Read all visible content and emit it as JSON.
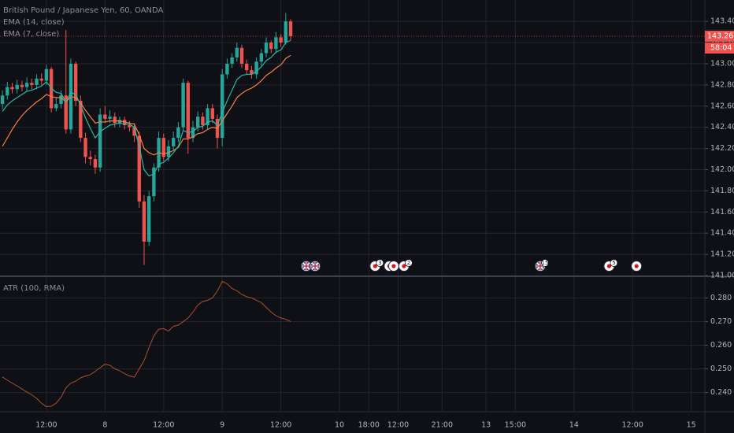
{
  "chart_data": [
    {
      "type": "candlestick",
      "title": "British Pound / Japanese Yen, 60, OANDA",
      "up_color": "#26a69a",
      "down_color": "#ef5350",
      "open": [
        142.62,
        142.7,
        142.78,
        142.76,
        142.8,
        142.78,
        142.82,
        142.8,
        142.86,
        142.84,
        142.95,
        142.58,
        142.62,
        142.7,
        142.38,
        143.0,
        142.65,
        142.3,
        142.12,
        142.1,
        142.02,
        142.52,
        142.48,
        142.5,
        142.44,
        142.47,
        142.42,
        142.4,
        142.32,
        141.7,
        141.32,
        141.75,
        142.02,
        142.3,
        142.12,
        142.22,
        142.3,
        142.4,
        142.82,
        142.3,
        142.4,
        142.5,
        142.42,
        142.58,
        142.48,
        142.3,
        142.9,
        143.0,
        143.06,
        143.15,
        143.0,
        142.94,
        142.9,
        143.02,
        143.1,
        143.2,
        143.14,
        143.25,
        143.2,
        143.4
      ],
      "high": [
        142.75,
        142.83,
        142.82,
        142.85,
        142.84,
        142.87,
        142.86,
        142.9,
        142.91,
        142.99,
        142.97,
        142.68,
        142.75,
        143.32,
        143.05,
        143.02,
        142.7,
        142.35,
        142.18,
        142.14,
        142.58,
        142.6,
        142.56,
        142.54,
        142.5,
        142.5,
        142.46,
        142.44,
        142.36,
        141.76,
        141.8,
        142.06,
        142.36,
        142.34,
        142.28,
        142.36,
        142.45,
        142.86,
        142.84,
        142.46,
        142.55,
        142.54,
        142.62,
        142.62,
        142.52,
        142.95,
        143.05,
        143.1,
        143.2,
        143.18,
        143.04,
        142.98,
        143.06,
        143.14,
        143.25,
        143.22,
        143.3,
        143.28,
        143.48,
        143.42
      ],
      "low": [
        142.57,
        142.66,
        142.72,
        142.72,
        142.74,
        142.74,
        142.76,
        142.76,
        142.8,
        142.8,
        142.54,
        142.55,
        142.58,
        142.34,
        142.34,
        142.6,
        142.26,
        142.06,
        142.04,
        141.96,
        141.98,
        142.44,
        142.44,
        142.4,
        142.4,
        142.38,
        142.36,
        142.26,
        141.64,
        141.1,
        141.28,
        141.7,
        141.98,
        142.08,
        142.08,
        142.18,
        142.26,
        142.36,
        142.15,
        142.26,
        142.36,
        142.38,
        142.38,
        142.44,
        142.2,
        142.22,
        142.86,
        142.96,
        143.02,
        142.96,
        142.9,
        142.86,
        142.86,
        142.98,
        143.06,
        143.1,
        143.1,
        143.16,
        143.18,
        143.22
      ],
      "close": [
        142.7,
        142.78,
        142.76,
        142.8,
        142.78,
        142.82,
        142.8,
        142.86,
        142.84,
        142.95,
        142.58,
        142.62,
        142.7,
        142.38,
        143.0,
        142.65,
        142.3,
        142.12,
        142.1,
        142.02,
        142.52,
        142.48,
        142.5,
        142.44,
        142.47,
        142.42,
        142.4,
        142.32,
        141.7,
        141.32,
        141.75,
        142.02,
        142.3,
        142.12,
        142.22,
        142.3,
        142.4,
        142.82,
        142.3,
        142.4,
        142.5,
        142.42,
        142.58,
        142.48,
        142.3,
        142.9,
        143.0,
        143.06,
        143.15,
        143.0,
        142.94,
        142.9,
        143.02,
        143.1,
        143.2,
        143.14,
        143.25,
        143.2,
        143.4,
        143.26
      ],
      "series": [
        {
          "name": "EMA (14, close)",
          "color": "#f57f47",
          "values": [
            142.22,
            142.3,
            142.38,
            142.45,
            142.51,
            142.56,
            142.6,
            142.64,
            142.67,
            142.71,
            142.69,
            142.68,
            142.68,
            142.64,
            142.69,
            142.68,
            142.63,
            142.56,
            142.5,
            142.44,
            142.45,
            142.45,
            142.46,
            142.46,
            142.46,
            142.45,
            142.44,
            142.43,
            142.33,
            142.2,
            142.16,
            142.14,
            142.16,
            142.15,
            142.16,
            142.18,
            142.21,
            142.29,
            142.29,
            142.31,
            142.34,
            142.35,
            142.38,
            142.4,
            142.39,
            142.46,
            142.53,
            142.6,
            142.68,
            142.72,
            142.75,
            142.77,
            142.8,
            142.84,
            142.89,
            142.92,
            142.96,
            142.99,
            143.05,
            143.08
          ]
        },
        {
          "name": "EMA (7, close)",
          "color": "#2bb7a5",
          "values": [
            142.55,
            142.61,
            142.65,
            142.68,
            142.71,
            142.74,
            142.75,
            142.77,
            142.79,
            142.83,
            142.77,
            142.73,
            142.72,
            142.64,
            142.73,
            142.71,
            142.61,
            142.49,
            142.39,
            142.3,
            142.36,
            142.39,
            142.42,
            142.43,
            142.44,
            142.43,
            142.43,
            142.4,
            142.22,
            142.0,
            141.94,
            141.96,
            142.05,
            142.07,
            142.11,
            142.16,
            142.22,
            142.37,
            142.35,
            142.36,
            142.4,
            142.41,
            142.45,
            142.46,
            142.42,
            142.54,
            142.65,
            142.75,
            142.85,
            142.89,
            142.9,
            142.9,
            142.93,
            142.97,
            143.03,
            143.06,
            143.11,
            143.13,
            143.2,
            143.22
          ]
        }
      ],
      "last_price_label": "143.261",
      "countdown": "58:04",
      "xlim": [
        -0.5,
        143.8
      ],
      "xticks": [
        {
          "value": 9,
          "label": "12:00"
        },
        {
          "value": 21,
          "label": "8"
        },
        {
          "value": 33,
          "label": "12:00"
        },
        {
          "value": 45,
          "label": "9"
        },
        {
          "value": 57,
          "label": "12:00"
        },
        {
          "value": 69,
          "label": "10"
        },
        {
          "value": 75,
          "label": "18:00"
        },
        {
          "value": 81,
          "label": "12:00"
        },
        {
          "value": 90,
          "label": "21:00"
        },
        {
          "value": 99,
          "label": "13"
        },
        {
          "value": 105,
          "label": "15:00"
        },
        {
          "value": 117,
          "label": "14"
        },
        {
          "value": 129,
          "label": "12:00"
        },
        {
          "value": 141,
          "label": "15"
        }
      ],
      "ylim": [
        141.0,
        143.602
      ],
      "yticks": [
        {
          "value": 141.0,
          "label": "141.000"
        },
        {
          "value": 141.2,
          "label": "141.200"
        },
        {
          "value": 141.4,
          "label": "141.400"
        },
        {
          "value": 141.6,
          "label": "141.600"
        },
        {
          "value": 141.8,
          "label": "141.800"
        },
        {
          "value": 142.0,
          "label": "142.000"
        },
        {
          "value": 142.2,
          "label": "142.200"
        },
        {
          "value": 142.4,
          "label": "142.400"
        },
        {
          "value": 142.6,
          "label": "142.600"
        },
        {
          "value": 142.8,
          "label": "142.800"
        },
        {
          "value": 143.0,
          "label": "143.000"
        },
        {
          "value": 143.2,
          "label": "143.200"
        },
        {
          "value": 143.4,
          "label": "143.400"
        }
      ],
      "grid": true,
      "events": [
        {
          "x": 62.2,
          "flag": "gb",
          "label": null
        },
        {
          "x": 64,
          "flag": "gb",
          "label": null
        },
        {
          "x": 76.3,
          "flag": "jp",
          "label": "3"
        },
        {
          "x": 79.2,
          "flag": "jp",
          "label": null
        },
        {
          "x": 80.1,
          "flag": "jp",
          "label": null
        },
        {
          "x": 82.2,
          "flag": "jp",
          "label": "2"
        },
        {
          "x": 110.1,
          "flag": "gb",
          "label": "15"
        },
        {
          "x": 124.2,
          "flag": "jp",
          "label": "5"
        },
        {
          "x": 129.8,
          "flag": "jp",
          "label": null
        }
      ]
    },
    {
      "type": "line",
      "title": "ATR (100, RMA)",
      "color": "#9c4a32",
      "values": [
        0.2466,
        0.2452,
        0.244,
        0.2428,
        0.2415,
        0.2402,
        0.239,
        0.2375,
        0.2355,
        0.234,
        0.2342,
        0.2355,
        0.238,
        0.242,
        0.244,
        0.2448,
        0.2462,
        0.247,
        0.2475,
        0.249,
        0.2505,
        0.252,
        0.2515,
        0.25,
        0.2492,
        0.248,
        0.247,
        0.2465,
        0.25,
        0.2535,
        0.259,
        0.264,
        0.2668,
        0.267,
        0.266,
        0.268,
        0.2685,
        0.27,
        0.2715,
        0.274,
        0.277,
        0.2785,
        0.279,
        0.28,
        0.283,
        0.287,
        0.286,
        0.284,
        0.283,
        0.2815,
        0.2805,
        0.28,
        0.279,
        0.278,
        0.276,
        0.274,
        0.2725,
        0.2715,
        0.271,
        0.27
      ],
      "ylim": [
        0.2322,
        0.2888
      ],
      "yticks": [
        {
          "value": 0.24,
          "label": "0.240"
        },
        {
          "value": 0.25,
          "label": "0.250"
        },
        {
          "value": 0.26,
          "label": "0.260"
        },
        {
          "value": 0.27,
          "label": "0.270"
        },
        {
          "value": 0.28,
          "label": "0.280"
        }
      ],
      "grid": true
    }
  ]
}
